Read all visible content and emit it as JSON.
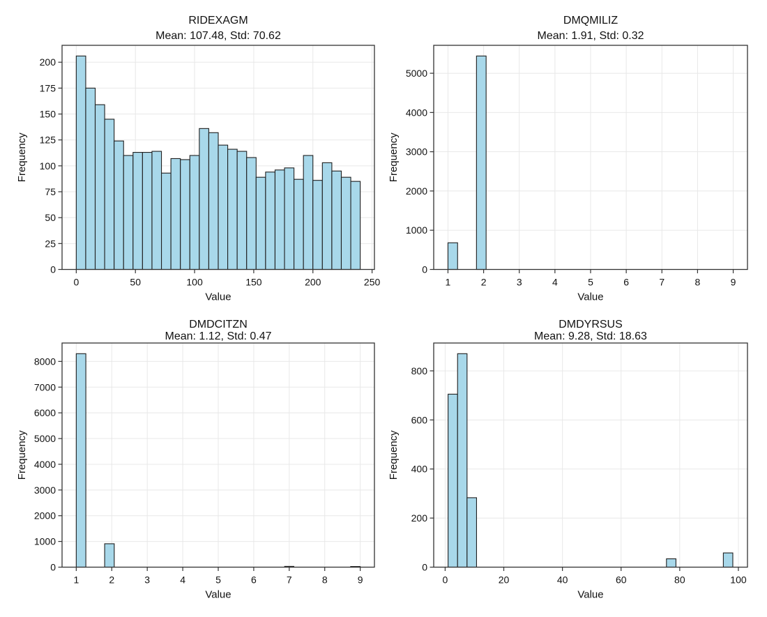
{
  "figure": {
    "background": "#ffffff",
    "bar_fill": "#a8d8ea",
    "bar_edge": "#1f1f1f",
    "grid_color": "#e8e8e8",
    "spine_color": "#333333",
    "tick_color": "#333333",
    "text_color": "#111111"
  },
  "chart_data": [
    {
      "type": "bar",
      "title": "RIDEXAGM",
      "subtitle": "Mean: 107.48, Std: 70.62",
      "xlabel": "Value",
      "ylabel": "Frequency",
      "xlim": [
        -12,
        252
      ],
      "ylim": [
        0,
        216.3
      ],
      "xticks": [
        0,
        50,
        100,
        150,
        200,
        250
      ],
      "yticks": [
        0,
        25,
        50,
        75,
        100,
        125,
        150,
        175,
        200
      ],
      "grid": true,
      "legend": "none",
      "bars": [
        [
          0,
          8,
          206
        ],
        [
          8,
          16,
          175
        ],
        [
          16,
          24,
          159
        ],
        [
          24,
          32,
          145
        ],
        [
          32,
          40,
          124
        ],
        [
          40,
          48,
          110
        ],
        [
          48,
          56,
          113
        ],
        [
          56,
          64,
          113
        ],
        [
          64,
          72,
          114
        ],
        [
          72,
          80,
          93
        ],
        [
          80,
          88,
          107
        ],
        [
          88,
          96,
          106
        ],
        [
          96,
          104,
          110
        ],
        [
          104,
          112,
          136
        ],
        [
          112,
          120,
          132
        ],
        [
          120,
          128,
          120
        ],
        [
          128,
          136,
          116
        ],
        [
          136,
          144,
          114
        ],
        [
          144,
          152,
          108
        ],
        [
          152,
          160,
          89
        ],
        [
          160,
          168,
          94
        ],
        [
          168,
          176,
          96
        ],
        [
          176,
          184,
          98
        ],
        [
          184,
          192,
          87
        ],
        [
          192,
          200,
          110
        ],
        [
          200,
          208,
          86
        ],
        [
          208,
          216,
          103
        ],
        [
          216,
          224,
          95
        ],
        [
          224,
          232,
          89
        ],
        [
          232,
          240,
          85
        ]
      ]
    },
    {
      "type": "bar",
      "title": "DMQMILIZ",
      "subtitle": "Mean: 1.91, Std: 0.32",
      "xlabel": "Value",
      "ylabel": "Frequency",
      "xlim": [
        0.6,
        9.4
      ],
      "ylim": [
        0,
        5712
      ],
      "xticks": [
        1,
        2,
        3,
        4,
        5,
        6,
        7,
        8,
        9
      ],
      "yticks": [
        0,
        1000,
        2000,
        3000,
        4000,
        5000
      ],
      "grid": true,
      "legend": "none",
      "bars": [
        [
          1.0,
          1.27,
          680
        ],
        [
          1.8,
          2.07,
          5440
        ]
      ]
    },
    {
      "type": "bar",
      "title": "DMDCITZN",
      "subtitle": "Mean: 1.12, Std: 0.47",
      "xlabel": "Value",
      "ylabel": "Frequency",
      "xlim": [
        0.6,
        9.4
      ],
      "ylim": [
        0,
        8715
      ],
      "xticks": [
        1,
        2,
        3,
        4,
        5,
        6,
        7,
        8,
        9
      ],
      "yticks": [
        0,
        1000,
        2000,
        3000,
        4000,
        5000,
        6000,
        7000,
        8000
      ],
      "grid": true,
      "legend": "none",
      "bars": [
        [
          1.0,
          1.27,
          8300
        ],
        [
          1.8,
          2.07,
          910
        ],
        [
          6.87,
          7.13,
          30
        ],
        [
          8.73,
          9.0,
          25
        ]
      ]
    },
    {
      "type": "bar",
      "title": "DMDYRSUS",
      "subtitle": "Mean: 9.28, Std: 18.63",
      "xlabel": "Value",
      "ylabel": "Frequency",
      "xlim": [
        -3.9,
        103.1
      ],
      "ylim": [
        0,
        913.5
      ],
      "xticks": [
        0,
        20,
        40,
        60,
        80,
        100
      ],
      "yticks": [
        0,
        200,
        400,
        600,
        800
      ],
      "grid": true,
      "legend": "none",
      "bars": [
        [
          1.0,
          4.24,
          705
        ],
        [
          4.24,
          7.47,
          870
        ],
        [
          7.47,
          10.71,
          283
        ],
        [
          75.47,
          78.71,
          34
        ],
        [
          94.87,
          98.1,
          58
        ]
      ]
    }
  ]
}
